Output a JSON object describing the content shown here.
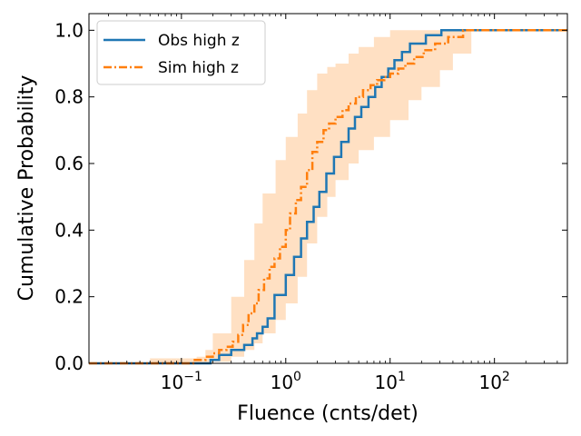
{
  "chart_data": {
    "type": "step",
    "title": "",
    "xlabel": "Fluence (cnts/det)",
    "ylabel": "Cumulative Probability",
    "xscale": "log",
    "xlim": [
      0.013,
      500
    ],
    "ylim": [
      0.0,
      1.05
    ],
    "x_ticks": [
      {
        "value": 0.1,
        "base": "10",
        "exp": "−1"
      },
      {
        "value": 1,
        "base": "10",
        "exp": "0"
      },
      {
        "value": 10,
        "base": "10",
        "exp": "1"
      },
      {
        "value": 100,
        "base": "10",
        "exp": "2"
      }
    ],
    "y_ticks": [
      {
        "value": 0.0,
        "label": "0.0"
      },
      {
        "value": 0.2,
        "label": "0.2"
      },
      {
        "value": 0.4,
        "label": "0.4"
      },
      {
        "value": 0.6,
        "label": "0.6"
      },
      {
        "value": 0.8,
        "label": "0.8"
      },
      {
        "value": 1.0,
        "label": "1.0"
      }
    ],
    "legend_position": "top-left",
    "series": [
      {
        "name": "Obs high z",
        "style": "solid",
        "color": "#1f77b4",
        "x": [
          0.013,
          0.19,
          0.23,
          0.3,
          0.4,
          0.48,
          0.53,
          0.6,
          0.67,
          0.78,
          1.0,
          1.2,
          1.4,
          1.6,
          1.85,
          2.1,
          2.45,
          2.9,
          3.4,
          4.0,
          4.6,
          5.3,
          6.2,
          7.2,
          8.3,
          9.6,
          11.0,
          13.0,
          15.5,
          18.0,
          22.0,
          31.0,
          51.0,
          500
        ],
        "y": [
          0.0,
          0.01,
          0.025,
          0.04,
          0.055,
          0.075,
          0.09,
          0.11,
          0.135,
          0.205,
          0.265,
          0.32,
          0.375,
          0.425,
          0.47,
          0.515,
          0.57,
          0.62,
          0.665,
          0.705,
          0.74,
          0.77,
          0.8,
          0.83,
          0.86,
          0.885,
          0.91,
          0.935,
          0.96,
          0.96,
          0.985,
          1.0,
          1.0,
          1.0
        ]
      },
      {
        "name": "Sim high z",
        "style": "dashdot",
        "color": "#ff7f0e",
        "x": [
          0.013,
          0.13,
          0.17,
          0.2,
          0.23,
          0.27,
          0.31,
          0.35,
          0.39,
          0.44,
          0.5,
          0.55,
          0.62,
          0.7,
          0.78,
          0.88,
          1.0,
          1.1,
          1.25,
          1.4,
          1.6,
          1.8,
          2.0,
          2.3,
          2.6,
          3.0,
          3.5,
          4.0,
          4.7,
          5.5,
          6.5,
          7.5,
          8.8,
          10.0,
          12.0,
          14.0,
          17.0,
          21.0,
          27.0,
          36.0,
          50.0,
          60.0,
          500
        ],
        "y": [
          0.0,
          0.01,
          0.02,
          0.03,
          0.04,
          0.05,
          0.065,
          0.085,
          0.115,
          0.15,
          0.18,
          0.22,
          0.255,
          0.29,
          0.315,
          0.35,
          0.4,
          0.45,
          0.49,
          0.53,
          0.58,
          0.635,
          0.665,
          0.7,
          0.72,
          0.74,
          0.76,
          0.78,
          0.8,
          0.82,
          0.835,
          0.85,
          0.86,
          0.87,
          0.885,
          0.9,
          0.92,
          0.94,
          0.96,
          0.98,
          1.0,
          1.0,
          1.0
        ]
      }
    ],
    "band": {
      "name": "Sim high z range",
      "color": "#ffdbb8",
      "x": [
        0.013,
        0.05,
        0.1,
        0.14,
        0.17,
        0.2,
        0.3,
        0.4,
        0.5,
        0.6,
        0.8,
        1.0,
        1.3,
        1.6,
        2.0,
        2.5,
        3.0,
        4.0,
        5.0,
        7.0,
        10.0,
        15.0,
        20.0,
        30.0,
        40.0,
        60.0,
        500
      ],
      "low": [
        0.0,
        0.0,
        0.0,
        0.0,
        0.0,
        0.005,
        0.02,
        0.04,
        0.06,
        0.09,
        0.13,
        0.18,
        0.26,
        0.36,
        0.44,
        0.5,
        0.55,
        0.6,
        0.64,
        0.68,
        0.73,
        0.79,
        0.83,
        0.88,
        0.93,
        1.0,
        1.0
      ],
      "high": [
        0.0,
        0.015,
        0.015,
        0.02,
        0.04,
        0.09,
        0.2,
        0.31,
        0.42,
        0.51,
        0.61,
        0.68,
        0.75,
        0.82,
        0.87,
        0.89,
        0.9,
        0.93,
        0.95,
        0.98,
        1.0,
        1.0,
        1.0,
        1.0,
        1.0,
        1.0,
        1.0
      ]
    }
  }
}
